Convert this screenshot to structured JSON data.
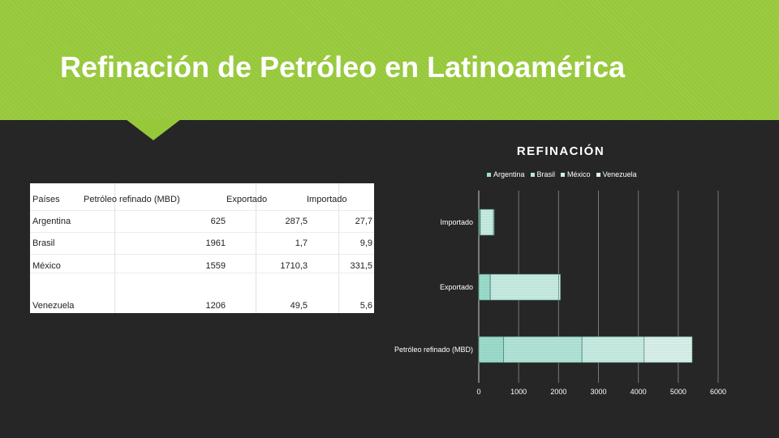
{
  "slide": {
    "title": "Refinación de Petróleo en Latinoamérica",
    "header_color": "#96c83a",
    "background_color": "#262626"
  },
  "table": {
    "headers": [
      "Países",
      "Petróleo refinado (MBD)",
      "Exportado",
      "Importado"
    ],
    "rows": [
      [
        "Argentina",
        "625",
        "287,5",
        "27,7"
      ],
      [
        "Brasil",
        "1961",
        "1,7",
        "9,9"
      ],
      [
        "México",
        "1559",
        "1710,3",
        "331,5"
      ],
      [
        "Venezuela",
        "1206",
        "49,5",
        "5,6"
      ]
    ]
  },
  "chart_data": {
    "type": "bar",
    "orientation": "horizontal",
    "stacked": true,
    "title": "REFINACIÓN",
    "categories": [
      "Petróleo refinado (MBD)",
      "Exportado",
      "Importado"
    ],
    "series": [
      {
        "name": "Argentina",
        "values": [
          625,
          287.5,
          27.7
        ],
        "color": "#9ee0cf"
      },
      {
        "name": "Brasil",
        "values": [
          1961,
          1.7,
          9.9
        ],
        "color": "#b4e8da"
      },
      {
        "name": "México",
        "values": [
          1559,
          1710.3,
          331.5
        ],
        "color": "#c9efe5"
      },
      {
        "name": "Venezuela",
        "values": [
          1206,
          49.5,
          5.6
        ],
        "color": "#dcf4ee"
      }
    ],
    "xlim": [
      0,
      6000
    ],
    "xticks": [
      "0",
      "1000",
      "2000",
      "3000",
      "4000",
      "5000",
      "6000"
    ],
    "grid": true,
    "legend_position": "top"
  }
}
